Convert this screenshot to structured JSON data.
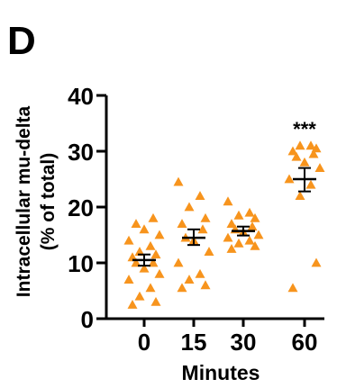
{
  "panel_label": "D",
  "chart_data": {
    "type": "scatter",
    "categories": [
      "0",
      "15",
      "30",
      "60"
    ],
    "xlabel": "Minutes",
    "ylabel_lines": [
      "Intracellular mu-delta",
      "(% of total)"
    ],
    "ylim": [
      0,
      40
    ],
    "yticks": [
      0,
      10,
      20,
      30,
      40
    ],
    "marker": "triangle",
    "point_color": "#f7941d",
    "groups": [
      {
        "category": "0",
        "points": [
          2.5,
          3,
          4,
          5.5,
          7,
          8,
          9,
          10,
          10,
          11,
          11.5,
          12,
          13,
          14,
          15,
          16,
          17,
          18
        ],
        "mean": 10.5,
        "sem_low": 9.5,
        "sem_high": 11.5
      },
      {
        "category": "15",
        "points": [
          5.5,
          6,
          7,
          8,
          10,
          12,
          14,
          14.5,
          16,
          17,
          18,
          20,
          22,
          24.5
        ],
        "mean": 14.5,
        "sem_low": 13.2,
        "sem_high": 16
      },
      {
        "category": "30",
        "points": [
          12.5,
          13,
          13.5,
          14,
          14.5,
          15,
          15.5,
          16,
          16.5,
          17,
          18,
          18.5,
          19,
          21
        ],
        "mean": 15.7,
        "sem_low": 14.9,
        "sem_high": 16.5
      },
      {
        "category": "60",
        "points": [
          5.5,
          10,
          22,
          24,
          25,
          27,
          28,
          29,
          29.5,
          30,
          30.5,
          31,
          31
        ],
        "mean": 25,
        "sem_low": 22.8,
        "sem_high": 27
      }
    ],
    "annotations": [
      {
        "category": "60",
        "text": "***",
        "y": 34
      }
    ]
  }
}
